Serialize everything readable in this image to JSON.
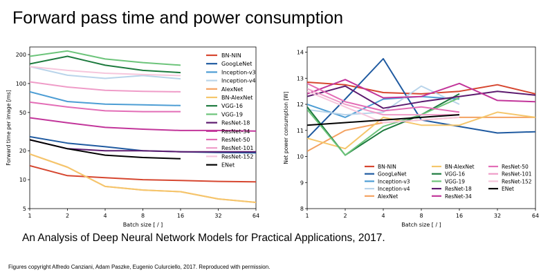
{
  "slide": {
    "title": "Forward pass time and power consumption",
    "subtitle": "An Analysis of Deep Neural Network Models for Practical Applications, 2017.",
    "copyright": "Figures copyright Alfredo Canziani, Adam Paszke, Eugenio Culurciello, 2017. Reproduced with permission."
  },
  "chart_data": [
    {
      "type": "line",
      "xscale": "log2",
      "yscale": "log",
      "xlabel": "Batch size [ / ]",
      "ylabel": "Forward time per image [ms]",
      "x_ticks": [
        1,
        2,
        4,
        8,
        16,
        32,
        64
      ],
      "y_ticks": [
        5,
        10,
        20,
        50,
        100,
        200
      ],
      "ylim": [
        5,
        240
      ],
      "legend_position": "top-right",
      "series": [
        {
          "name": "BN-NIN",
          "color": "#d6462f",
          "x": [
            1,
            2,
            4,
            8,
            16,
            32,
            64
          ],
          "values": [
            14,
            11,
            10.5,
            10,
            9.8,
            9.6,
            9.5
          ]
        },
        {
          "name": "GoogLeNet",
          "color": "#1f5aa0",
          "x": [
            1,
            2,
            4,
            8,
            16,
            32,
            64
          ],
          "values": [
            28,
            24,
            22,
            20,
            19.5,
            19.2,
            19
          ]
        },
        {
          "name": "Inception-v3",
          "color": "#4c9dd4",
          "x": [
            1,
            2,
            4,
            8,
            16
          ],
          "values": [
            82,
            65,
            61,
            60,
            59
          ]
        },
        {
          "name": "Inception-v4",
          "color": "#b9d4ea",
          "x": [
            1,
            2,
            4,
            8,
            16
          ],
          "values": [
            150,
            122,
            113,
            121,
            112
          ]
        },
        {
          "name": "AlexNet",
          "color": "#f4a261",
          "x": [
            1,
            2,
            4,
            8,
            16,
            32,
            64
          ],
          "values": [
            18.5,
            13.5,
            8.5,
            7.8,
            7.5,
            6.3,
            5.8
          ]
        },
        {
          "name": "BN-AlexNet",
          "color": "#f5c66b",
          "x": [
            1,
            2,
            4,
            8,
            16,
            32,
            64
          ],
          "values": [
            18.5,
            13.5,
            8.5,
            7.8,
            7.5,
            6.3,
            5.8
          ]
        },
        {
          "name": "VGG-16",
          "color": "#1d7a3e",
          "x": [
            1,
            2,
            4,
            8,
            16
          ],
          "values": [
            160,
            192,
            155,
            137,
            130
          ]
        },
        {
          "name": "VGG-19",
          "color": "#6cc47a",
          "x": [
            1,
            2,
            4,
            8,
            16
          ],
          "values": [
            192,
            218,
            180,
            165,
            155
          ]
        },
        {
          "name": "ResNet-18",
          "color": "#5c1a6e",
          "x": [
            1,
            2,
            4,
            8,
            16,
            32,
            64
          ],
          "values": [
            26,
            21,
            20,
            20,
            19.5,
            19.5,
            19.5
          ]
        },
        {
          "name": "ResNet-34",
          "color": "#c2359a",
          "x": [
            1,
            2,
            4,
            8,
            16,
            32,
            64
          ],
          "values": [
            44,
            39,
            35,
            33.5,
            32.5,
            32.5,
            32
          ]
        },
        {
          "name": "ResNet-50",
          "color": "#e36db6",
          "x": [
            1,
            2,
            4,
            8,
            16
          ],
          "values": [
            64,
            57,
            52,
            51,
            51
          ]
        },
        {
          "name": "ResNet-101",
          "color": "#ef9cc8",
          "x": [
            1,
            2,
            4,
            8,
            16
          ],
          "values": [
            104,
            92,
            85,
            83,
            82
          ]
        },
        {
          "name": "ResNet-152",
          "color": "#f6c6dc",
          "x": [
            1,
            2,
            4,
            8,
            16
          ],
          "values": [
            150,
            137,
            128,
            124,
            121
          ]
        },
        {
          "name": "ENet",
          "color": "#000000",
          "x": [
            1,
            2,
            4,
            8,
            16
          ],
          "values": [
            26,
            21,
            18,
            17,
            16.5
          ]
        }
      ]
    },
    {
      "type": "line",
      "xscale": "log2",
      "yscale": "linear",
      "xlabel": "Batch size [ / ]",
      "ylabel": "Net power consumption [W]",
      "x_ticks": [
        1,
        2,
        4,
        8,
        16,
        32,
        64
      ],
      "y_ticks": [
        8,
        9,
        10,
        11,
        12,
        13,
        14
      ],
      "ylim": [
        8,
        14.2
      ],
      "legend_position": "bottom",
      "series": [
        {
          "name": "BN-NIN",
          "color": "#d6462f",
          "x": [
            1,
            2,
            4,
            8,
            16,
            32,
            64
          ],
          "values": [
            12.85,
            12.75,
            12.45,
            12.4,
            12.5,
            12.75,
            12.4
          ]
        },
        {
          "name": "GoogLeNet",
          "color": "#1f5aa0",
          "x": [
            1,
            2,
            4,
            8,
            16,
            32,
            64
          ],
          "values": [
            10.7,
            12.2,
            13.75,
            11.4,
            11.15,
            10.9,
            10.95
          ]
        },
        {
          "name": "Inception-v3",
          "color": "#4c9dd4",
          "x": [
            1,
            2,
            4,
            8,
            16
          ],
          "values": [
            12.0,
            11.5,
            12.2,
            12.3,
            12.2
          ]
        },
        {
          "name": "Inception-v4",
          "color": "#b9d4ea",
          "x": [
            1,
            2,
            4,
            8,
            16
          ],
          "values": [
            11.8,
            11.6,
            11.7,
            12.7,
            12.0
          ]
        },
        {
          "name": "AlexNet",
          "color": "#f4a261",
          "x": [
            1,
            2,
            4,
            8,
            16,
            32,
            64
          ],
          "values": [
            10.2,
            11.0,
            11.3,
            11.4,
            11.5,
            11.5,
            11.5
          ]
        },
        {
          "name": "BN-AlexNet",
          "color": "#f5c66b",
          "x": [
            1,
            2,
            4,
            8,
            16,
            32,
            64
          ],
          "values": [
            10.7,
            10.3,
            11.5,
            11.2,
            11.2,
            11.7,
            11.5
          ]
        },
        {
          "name": "VGG-16",
          "color": "#1d7a3e",
          "x": [
            1,
            2,
            4,
            8,
            16
          ],
          "values": [
            11.9,
            10.05,
            11.0,
            11.6,
            12.4
          ]
        },
        {
          "name": "VGG-19",
          "color": "#6cc47a",
          "x": [
            1,
            2,
            4,
            8,
            16
          ],
          "values": [
            11.8,
            10.05,
            11.15,
            11.6,
            12.25
          ]
        },
        {
          "name": "ResNet-18",
          "color": "#5c1a6e",
          "x": [
            1,
            2,
            4,
            8,
            16,
            32,
            64
          ],
          "values": [
            12.3,
            12.7,
            11.85,
            12.1,
            12.3,
            12.5,
            12.35
          ]
        },
        {
          "name": "ResNet-34",
          "color": "#c2359a",
          "x": [
            1,
            2,
            4,
            8,
            16,
            32,
            64
          ],
          "values": [
            12.4,
            12.95,
            12.25,
            12.3,
            12.8,
            12.15,
            12.1
          ]
        },
        {
          "name": "ResNet-50",
          "color": "#e36db6",
          "x": [
            1,
            2,
            4,
            8,
            16
          ],
          "values": [
            12.8,
            12.1,
            11.75,
            11.9,
            11.7
          ]
        },
        {
          "name": "ResNet-101",
          "color": "#ef9cc8",
          "x": [
            1,
            2,
            4,
            8,
            16
          ],
          "values": [
            12.6,
            12.0,
            11.6,
            11.6,
            11.6
          ]
        },
        {
          "name": "ResNet-152",
          "color": "#f6c6dc",
          "x": [
            1,
            2,
            4,
            8,
            16
          ],
          "values": [
            12.5,
            11.9,
            11.3,
            11.4,
            11.5
          ]
        },
        {
          "name": "ENet",
          "color": "#000000",
          "x": [
            1,
            2,
            4,
            8,
            16
          ],
          "values": [
            11.2,
            11.3,
            11.4,
            11.5,
            11.6
          ]
        }
      ]
    }
  ]
}
